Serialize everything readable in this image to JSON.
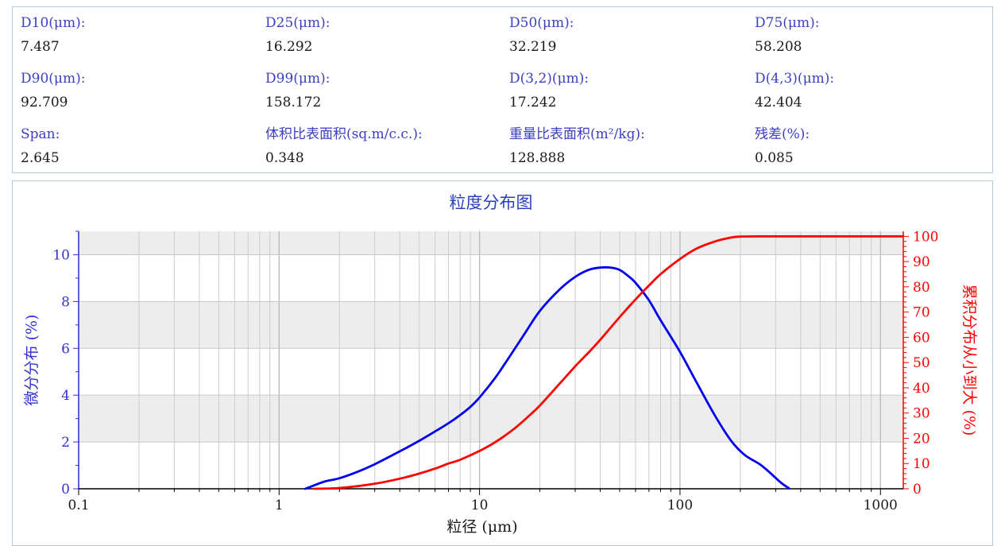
{
  "stats": [
    {
      "label": "D10(μm):",
      "value": "7.487"
    },
    {
      "label": "D25(μm):",
      "value": "16.292"
    },
    {
      "label": "D50(μm):",
      "value": "32.219"
    },
    {
      "label": "D75(μm):",
      "value": "58.208"
    },
    {
      "label": "D90(μm):",
      "value": "92.709"
    },
    {
      "label": "D99(μm):",
      "value": "158.172"
    },
    {
      "label": "D(3,2)(μm):",
      "value": "17.242"
    },
    {
      "label": "D(4,3)(μm):",
      "value": "42.404"
    },
    {
      "label": "Span:",
      "value": "2.645"
    },
    {
      "label": "体积比表面积(sq.m/c.c.):",
      "value": "0.348"
    },
    {
      "label": "重量比表面积(m²/kg):",
      "value": "128.888"
    },
    {
      "label": "残差(%):",
      "value": "0.085"
    }
  ],
  "chart_data": {
    "type": "line",
    "title": "粒度分布图",
    "xlabel": "粒径 (μm)",
    "ylabel_left": "微分分布 (%)",
    "ylabel_right": "累积分布从小到大 (%)",
    "x_scale": "log",
    "xlim": [
      0.1,
      1300
    ],
    "x_ticks": [
      {
        "value": 0.1,
        "label": "0.1"
      },
      {
        "value": 1,
        "label": "1"
      },
      {
        "value": 10,
        "label": "10"
      },
      {
        "value": 100,
        "label": "100"
      },
      {
        "value": 1000,
        "label": "1000"
      }
    ],
    "ylim_left": [
      0,
      11
    ],
    "y_ticks_left": [
      "0",
      "2",
      "4",
      "6",
      "8",
      "10"
    ],
    "ylim_right": [
      0,
      102
    ],
    "y_ticks_right": [
      "0",
      "10",
      "20",
      "30",
      "40",
      "50",
      "60",
      "70",
      "80",
      "90",
      "100"
    ],
    "grid": true,
    "series": [
      {
        "axis": "left",
        "color": "#0000ee",
        "x": [
          1.35,
          1.5,
          1.7,
          2,
          2.5,
          3,
          4,
          5,
          6,
          7,
          8,
          9,
          10,
          12,
          14,
          17,
          20,
          25,
          30,
          35,
          40,
          45,
          50,
          55,
          60,
          70,
          80,
          100,
          120,
          150,
          180,
          210,
          250,
          280,
          320,
          350
        ],
        "y": [
          0,
          0.15,
          0.32,
          0.45,
          0.75,
          1.05,
          1.6,
          2.05,
          2.45,
          2.8,
          3.15,
          3.5,
          3.9,
          4.75,
          5.6,
          6.7,
          7.6,
          8.5,
          9.05,
          9.35,
          9.45,
          9.45,
          9.35,
          9.1,
          8.8,
          8.05,
          7.2,
          5.85,
          4.6,
          3.1,
          2.05,
          1.45,
          1.05,
          0.7,
          0.25,
          0.02
        ]
      },
      {
        "axis": "right",
        "color": "#ff0000",
        "x": [
          1.5,
          2,
          3,
          4,
          5,
          6,
          7,
          8,
          10,
          12,
          15,
          18,
          20,
          25,
          30,
          35,
          40,
          50,
          60,
          70,
          80,
          100,
          120,
          150,
          180,
          200,
          250,
          300,
          500,
          1000,
          1300
        ],
        "y": [
          0,
          0.3,
          2,
          4,
          6,
          8,
          10,
          11.5,
          15,
          18.5,
          24,
          29.5,
          33,
          41.5,
          48.5,
          54,
          59,
          68,
          75,
          80.5,
          85,
          91,
          95,
          98,
          99.5,
          99.9,
          100,
          100,
          100,
          100,
          100
        ]
      }
    ]
  }
}
